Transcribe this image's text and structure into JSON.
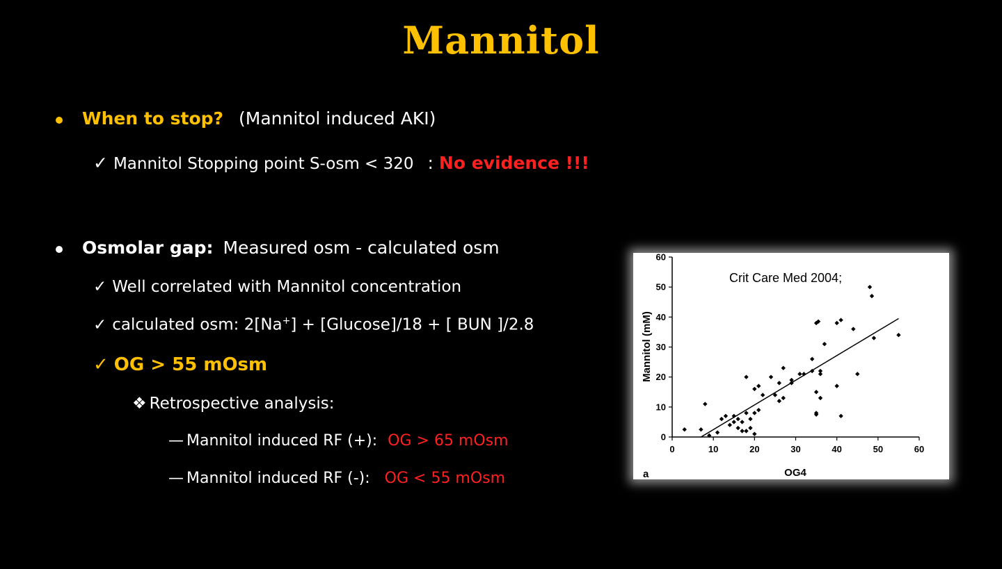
{
  "title": "Mannitol",
  "bullet1": {
    "heading": "When to stop?",
    "note": "(Mannitol induced AKI)",
    "sub": {
      "check": "✓",
      "text": "Mannitol Stopping point S-osm < 320",
      "sep": ":",
      "highlight": "No evidence !!!"
    }
  },
  "bullet2": {
    "heading": "Osmolar gap:",
    "text": "Measured osm - calculated osm",
    "subs": [
      {
        "check": "✓",
        "text": "Well correlated with Mannitol concentration"
      },
      {
        "check": "✓",
        "text_a": "calculated osm: 2[Na",
        "sup": "+",
        "text_b": "] + [Glucose]/18 + [ BUN ]/2.8"
      },
      {
        "check": "✓",
        "text": "OG > 55 mOsm"
      }
    ],
    "retro": {
      "marker": "❖",
      "text": "Retrospective analysis:",
      "items": [
        {
          "dash": "—",
          "text": "Mannitol induced RF (+):",
          "value": "OG > 65 mOsm"
        },
        {
          "dash": "—",
          "text": "Mannitol induced RF (-):",
          "value": "OG < 55 mOsm"
        }
      ]
    }
  },
  "chart_data": {
    "type": "scatter",
    "annotation": "Crit Care Med 2004;",
    "panel_label": "a",
    "xlabel": "OG4",
    "ylabel": "Mannitol (mM)",
    "xlim": [
      0,
      60
    ],
    "ylim": [
      0,
      60
    ],
    "xticks": [
      0,
      10,
      20,
      30,
      40,
      50,
      60
    ],
    "yticks": [
      0,
      10,
      20,
      30,
      40,
      50,
      60
    ],
    "points": [
      [
        3,
        2.5
      ],
      [
        7,
        2.5
      ],
      [
        8,
        11
      ],
      [
        9,
        0.5
      ],
      [
        11,
        1.5
      ],
      [
        12,
        6
      ],
      [
        13,
        7
      ],
      [
        14,
        4
      ],
      [
        15,
        5
      ],
      [
        15,
        7
      ],
      [
        16,
        3
      ],
      [
        16,
        6
      ],
      [
        17,
        2
      ],
      [
        17,
        5
      ],
      [
        18,
        2
      ],
      [
        18,
        8
      ],
      [
        18,
        20
      ],
      [
        19,
        3
      ],
      [
        19,
        6
      ],
      [
        20,
        8
      ],
      [
        20,
        16
      ],
      [
        20,
        1
      ],
      [
        21,
        9
      ],
      [
        21,
        17
      ],
      [
        22,
        14
      ],
      [
        24,
        20
      ],
      [
        25,
        14
      ],
      [
        26,
        12
      ],
      [
        26,
        18
      ],
      [
        27,
        23
      ],
      [
        27,
        13
      ],
      [
        29,
        19
      ],
      [
        29,
        18
      ],
      [
        31,
        21
      ],
      [
        32,
        21
      ],
      [
        34,
        26
      ],
      [
        34,
        22
      ],
      [
        35,
        15
      ],
      [
        35,
        8
      ],
      [
        35,
        7.5
      ],
      [
        35,
        38
      ],
      [
        35.5,
        38.5
      ],
      [
        36,
        21
      ],
      [
        36,
        22
      ],
      [
        36,
        13
      ],
      [
        37,
        31
      ],
      [
        40,
        17
      ],
      [
        40,
        38
      ],
      [
        41,
        39
      ],
      [
        41,
        7
      ],
      [
        44,
        36
      ],
      [
        45,
        21
      ],
      [
        48,
        50
      ],
      [
        48.5,
        47
      ],
      [
        49,
        33
      ],
      [
        55,
        34
      ]
    ],
    "trendline": {
      "x": [
        7,
        55
      ],
      "y": [
        0,
        39.5
      ]
    }
  }
}
